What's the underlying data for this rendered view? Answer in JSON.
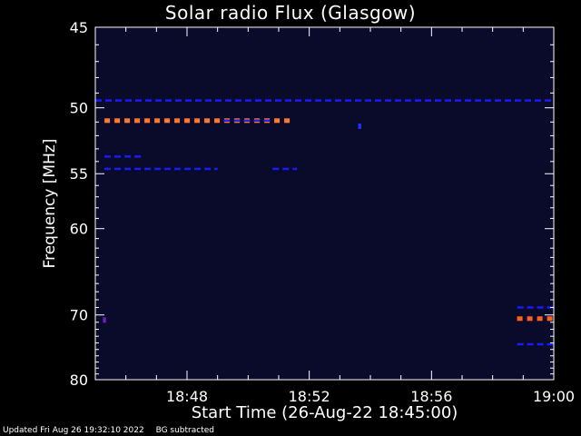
{
  "chart_data": {
    "type": "heatmap",
    "title": "Solar radio Flux (Glasgow)",
    "xlabel": "Start Time (26-Aug-22 18:45:00)",
    "ylabel": "Frequency [MHz]",
    "x_unit": "minutes after 18:45:00",
    "xlim": [
      0,
      15
    ],
    "ylim": [
      45,
      80
    ],
    "y_inverted": true,
    "y_scale": "reciprocal",
    "x_ticks": [
      {
        "value": 3,
        "label": "18:48"
      },
      {
        "value": 7,
        "label": "18:52"
      },
      {
        "value": 11,
        "label": "18:56"
      },
      {
        "value": 15,
        "label": "19:00"
      }
    ],
    "y_ticks": [
      {
        "value": 45,
        "label": "45"
      },
      {
        "value": 50,
        "label": "50"
      },
      {
        "value": 55,
        "label": "55"
      },
      {
        "value": 60,
        "label": "60"
      },
      {
        "value": 70,
        "label": "70"
      },
      {
        "value": 80,
        "label": "80"
      }
    ],
    "background_color": "#0a0a2a",
    "emission": [
      {
        "freq": 49.5,
        "t_start": 0.0,
        "t_end": 15.0,
        "level": "low",
        "color": "#1a1aff"
      },
      {
        "freq": 50.9,
        "t_start": 0.3,
        "t_end": 6.5,
        "level": "high",
        "color": "#ff7a30"
      },
      {
        "freq": 50.9,
        "t_start": 4.2,
        "t_end": 5.8,
        "level": "low",
        "color": "#2020e0"
      },
      {
        "freq": 53.6,
        "t_start": 0.3,
        "t_end": 1.6,
        "level": "low",
        "color": "#1a1aff"
      },
      {
        "freq": 54.6,
        "t_start": 0.3,
        "t_end": 4.0,
        "level": "low",
        "color": "#1a1aff"
      },
      {
        "freq": 54.6,
        "t_start": 5.8,
        "t_end": 6.6,
        "level": "low",
        "color": "#1a1aff"
      },
      {
        "freq": 69.0,
        "t_start": 13.8,
        "t_end": 15.0,
        "level": "low",
        "color": "#1a1aff"
      },
      {
        "freq": 70.5,
        "t_start": 13.8,
        "t_end": 15.0,
        "level": "high",
        "color": "#ff6020"
      },
      {
        "freq": 74.2,
        "t_start": 13.8,
        "t_end": 15.0,
        "level": "low",
        "color": "#1a1aff"
      },
      {
        "freq": 70.7,
        "t_start": 0.25,
        "t_end": 0.35,
        "level": "medium",
        "color": "#7020c0"
      },
      {
        "freq": 51.3,
        "t_start": 8.6,
        "t_end": 8.7,
        "level": "low",
        "color": "#2030ff"
      }
    ]
  },
  "footer": {
    "updated": "Updated Fri Aug 26 19:32:10 2022",
    "bg_note": "BG subtracted"
  }
}
